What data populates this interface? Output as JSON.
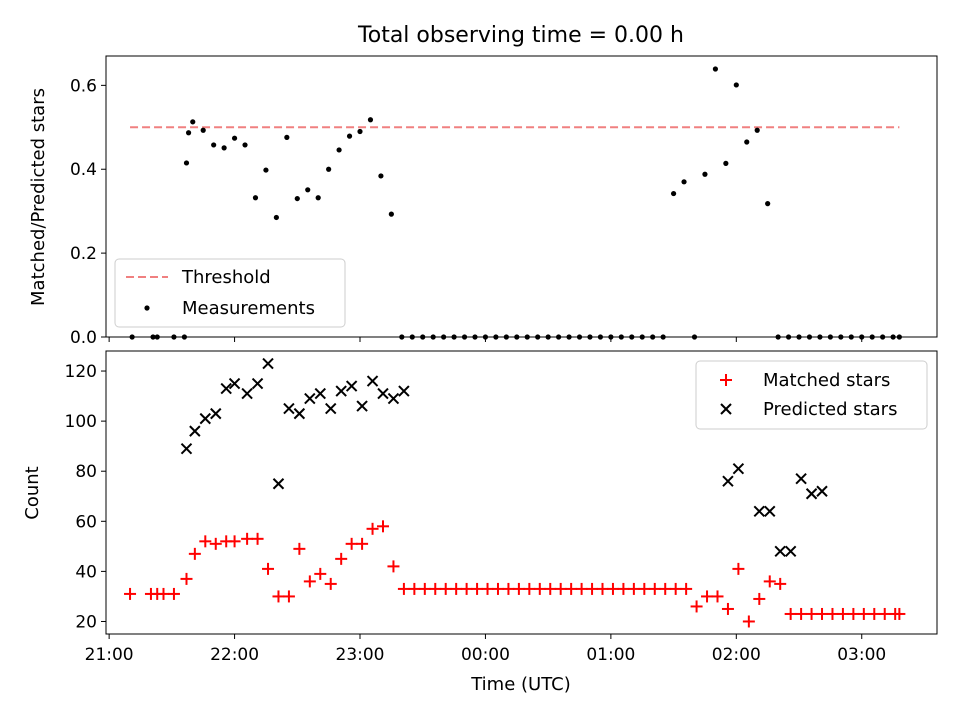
{
  "chart_data": [
    {
      "type": "scatter",
      "title": "Total observing time = 0.00 h",
      "xlabel": "",
      "ylabel": "Matched/Predicted stars",
      "ylim": [
        0,
        0.67
      ],
      "yticks": [
        "0.0",
        "0.2",
        "0.4",
        "0.6"
      ],
      "ytick_values": [
        0,
        0.2,
        0.4,
        0.6
      ],
      "legend_position": "lower-left",
      "threshold": {
        "name": "Threshold",
        "value": 0.5,
        "x_start": "21:10",
        "x_end": "03:18",
        "color": "#f08080"
      },
      "series": [
        {
          "name": "Measurements",
          "color": "#000000",
          "x": [
            "21:11",
            "21:21",
            "21:23",
            "21:31",
            "21:36",
            "21:37",
            "21:38",
            "21:40",
            "21:45",
            "21:50",
            "21:55",
            "22:00",
            "22:05",
            "22:10",
            "22:15",
            "22:20",
            "22:25",
            "22:30",
            "22:35",
            "22:40",
            "22:45",
            "22:50",
            "22:55",
            "23:00",
            "23:05",
            "23:10",
            "23:15",
            "23:20",
            "23:25",
            "23:30",
            "23:35",
            "23:40",
            "23:45",
            "23:50",
            "23:55",
            "00:00",
            "00:05",
            "00:10",
            "00:15",
            "00:20",
            "00:25",
            "00:30",
            "00:35",
            "00:40",
            "00:45",
            "00:50",
            "00:55",
            "01:00",
            "01:05",
            "01:10",
            "01:15",
            "01:20",
            "01:25",
            "01:30",
            "01:35",
            "01:40",
            "01:45",
            "01:50",
            "01:55",
            "02:00",
            "02:05",
            "02:10",
            "02:15",
            "02:20",
            "02:25",
            "02:30",
            "02:35",
            "02:40",
            "02:45",
            "02:50",
            "02:55",
            "03:00",
            "03:05",
            "03:10",
            "03:15",
            "03:18"
          ],
          "y": [
            0,
            0,
            0,
            0,
            0,
            0.415,
            0.487,
            0.513,
            0.493,
            0.458,
            0.451,
            0.474,
            0.458,
            0.332,
            0.398,
            0.285,
            0.476,
            0.33,
            0.351,
            0.332,
            0.4,
            0.446,
            0.479,
            0.49,
            0.518,
            0.384,
            0.293,
            0,
            0,
            0,
            0,
            0,
            0,
            0,
            0,
            0,
            0,
            0,
            0,
            0,
            0,
            0,
            0,
            0,
            0,
            0,
            0,
            0,
            0,
            0,
            0,
            0,
            0,
            0.342,
            0.37,
            0,
            0.388,
            0.639,
            0.414,
            0.601,
            0.465,
            0.493,
            0.318,
            0,
            0,
            0,
            0,
            0,
            0,
            0,
            0,
            0,
            0,
            0,
            0,
            0
          ]
        }
      ]
    },
    {
      "type": "scatter",
      "title": "",
      "xlabel": "Time (UTC)",
      "ylabel": "Count",
      "ylim": [
        15,
        128
      ],
      "yticks": [
        "20",
        "40",
        "60",
        "80",
        "100",
        "120"
      ],
      "ytick_values": [
        20,
        40,
        60,
        80,
        100,
        120
      ],
      "xlim": [
        "21:00",
        "03:36"
      ],
      "xticks": [
        "21:00",
        "22:00",
        "23:00",
        "00:00",
        "01:00",
        "02:00",
        "03:00"
      ],
      "legend_position": "upper-right",
      "series": [
        {
          "name": "Matched stars",
          "marker": "plus",
          "color": "#ff0000",
          "x": [
            "21:10",
            "21:20",
            "21:23",
            "21:26",
            "21:31",
            "21:37",
            "21:41",
            "21:46",
            "21:51",
            "21:56",
            "22:00",
            "22:06",
            "22:11",
            "22:16",
            "22:21",
            "22:26",
            "22:31",
            "22:36",
            "22:41",
            "22:46",
            "22:51",
            "22:56",
            "23:01",
            "23:06",
            "23:11",
            "23:16",
            "23:21",
            "23:26",
            "23:31",
            "23:36",
            "23:41",
            "23:46",
            "23:51",
            "23:56",
            "00:01",
            "00:06",
            "00:11",
            "00:16",
            "00:21",
            "00:26",
            "00:31",
            "00:36",
            "00:41",
            "00:46",
            "00:51",
            "00:56",
            "01:01",
            "01:06",
            "01:11",
            "01:16",
            "01:21",
            "01:26",
            "01:31",
            "01:36",
            "01:41",
            "01:46",
            "01:51",
            "01:56",
            "02:01",
            "02:06",
            "02:11",
            "02:16",
            "02:21",
            "02:26",
            "02:31",
            "02:36",
            "02:41",
            "02:46",
            "02:51",
            "02:56",
            "03:01",
            "03:06",
            "03:11",
            "03:16",
            "03:18"
          ],
          "y": [
            31,
            31,
            31,
            31,
            31,
            37,
            47,
            52,
            51,
            52,
            52,
            53,
            53,
            41,
            30,
            30,
            49,
            36,
            39,
            35,
            45,
            51,
            51,
            57,
            58,
            42,
            33,
            33,
            33,
            33,
            33,
            33,
            33,
            33,
            33,
            33,
            33,
            33,
            33,
            33,
            33,
            33,
            33,
            33,
            33,
            33,
            33,
            33,
            33,
            33,
            33,
            33,
            33,
            33,
            26,
            30,
            30,
            25,
            41,
            20,
            29,
            36,
            35,
            23,
            23,
            23,
            23,
            23,
            23,
            23,
            23,
            23,
            23,
            23,
            23
          ]
        },
        {
          "name": "Predicted stars",
          "marker": "x",
          "color": "#000000",
          "x": [
            "21:37",
            "21:41",
            "21:46",
            "21:51",
            "21:56",
            "22:00",
            "22:06",
            "22:11",
            "22:16",
            "22:21",
            "22:26",
            "22:31",
            "22:36",
            "22:41",
            "22:46",
            "22:51",
            "22:56",
            "23:01",
            "23:06",
            "23:11",
            "23:16",
            "23:21",
            "01:56",
            "02:01",
            "02:11",
            "02:16",
            "02:21",
            "02:26",
            "02:31",
            "02:36",
            "02:41"
          ],
          "y": [
            89,
            96,
            101,
            103,
            113,
            115,
            111,
            115,
            123,
            75,
            105,
            103,
            109,
            111,
            105,
            112,
            114,
            106,
            116,
            111,
            109,
            112,
            76,
            81,
            64,
            64,
            48,
            48,
            77,
            71,
            72
          ]
        }
      ]
    }
  ]
}
